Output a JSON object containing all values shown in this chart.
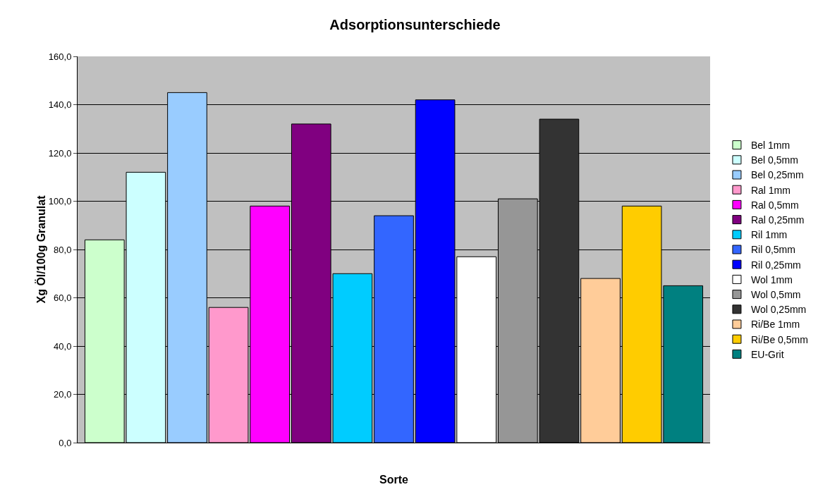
{
  "chart_data": {
    "type": "bar",
    "title": "Adsorptionsunterschiede",
    "xlabel": "Sorte",
    "ylabel": "Xg Öl/100g Granulat",
    "categories": [
      null
    ],
    "series": [
      {
        "name": "Bel 1mm",
        "color": "#ccffcc",
        "values": [
          84
        ]
      },
      {
        "name": "Bel 0,5mm",
        "color": "#ccffff",
        "values": [
          112
        ]
      },
      {
        "name": "Bel 0,25mm",
        "color": "#99ccff",
        "values": [
          145
        ]
      },
      {
        "name": "Ral 1mm",
        "color": "#ff99cc",
        "values": [
          56
        ]
      },
      {
        "name": "Ral 0,5mm",
        "color": "#ff00ff",
        "values": [
          98
        ]
      },
      {
        "name": "Ral 0,25mm",
        "color": "#800080",
        "values": [
          132
        ]
      },
      {
        "name": "Ril 1mm",
        "color": "#00ccff",
        "values": [
          70
        ]
      },
      {
        "name": "Ril 0,5mm",
        "color": "#3366ff",
        "values": [
          94
        ]
      },
      {
        "name": "Ril 0,25mm",
        "color": "#0000ff",
        "values": [
          142
        ]
      },
      {
        "name": "Wol 1mm",
        "color": "#ffffff",
        "values": [
          77
        ]
      },
      {
        "name": "Wol 0,5mm",
        "color": "#969696",
        "values": [
          101
        ]
      },
      {
        "name": "Wol 0,25mm",
        "color": "#333333",
        "values": [
          134
        ]
      },
      {
        "name": "Ri/Be 1mm",
        "color": "#ffcc99",
        "values": [
          68
        ]
      },
      {
        "name": "Ri/Be 0,5mm",
        "color": "#ffcc00",
        "values": [
          98
        ]
      },
      {
        "name": "EU-Grit",
        "color": "#008080",
        "values": [
          65
        ]
      }
    ],
    "ylim": [
      0,
      160
    ],
    "yticks": [
      {
        "value": 0,
        "label": "0,0"
      },
      {
        "value": 20,
        "label": "20,0"
      },
      {
        "value": 40,
        "label": "40,0"
      },
      {
        "value": 60,
        "label": "60,0"
      },
      {
        "value": 80,
        "label": "80,0"
      },
      {
        "value": 100,
        "label": "100,0"
      },
      {
        "value": 120,
        "label": "120,0"
      },
      {
        "value": 140,
        "label": "140,0"
      },
      {
        "value": 160,
        "label": "160,0"
      }
    ],
    "grid": "y",
    "legend": "right"
  }
}
